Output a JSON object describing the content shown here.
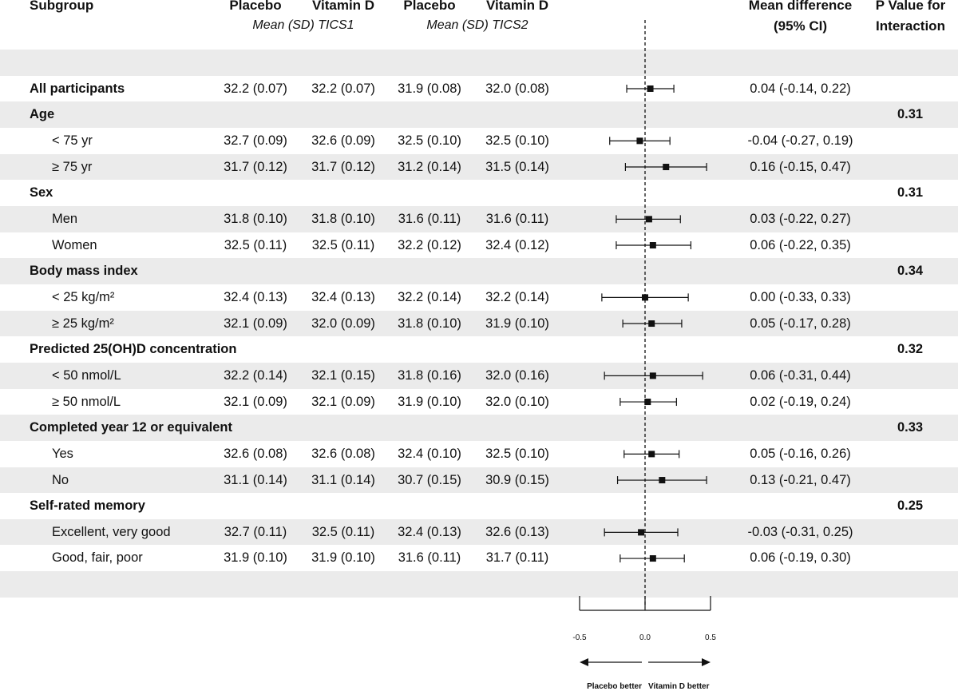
{
  "headers": {
    "subgroup": "Subgroup",
    "placebo1": "Placebo",
    "vitd1": "Vitamin D",
    "placebo2": "Placebo",
    "vitd2": "Vitamin D",
    "tics1": "Mean (SD) TICS1",
    "tics2": "Mean (SD) TICS2",
    "md_line1": "Mean difference",
    "md_line2": "(95% CI)",
    "pv_line1": "P Value for",
    "pv_line2": "Interaction"
  },
  "rows": [
    {
      "type": "blank"
    },
    {
      "type": "data",
      "bold": true,
      "label": "All participants",
      "p1": "32.2 (0.07)",
      "v1": "32.2 (0.07)",
      "p2": "31.9 (0.08)",
      "v2": "32.0 (0.08)",
      "md": "0.04 (-0.14, 0.22)"
    },
    {
      "type": "head",
      "label": "Age",
      "pval": "0.31"
    },
    {
      "type": "data",
      "label": "< 75 yr",
      "p1": "32.7 (0.09)",
      "v1": "32.6 (0.09)",
      "p2": "32.5 (0.10)",
      "v2": "32.5 (0.10)",
      "md": "-0.04 (-0.27, 0.19)"
    },
    {
      "type": "data",
      "label": "≥ 75 yr",
      "p1": "31.7 (0.12)",
      "v1": "31.7 (0.12)",
      "p2": "31.2 (0.14)",
      "v2": "31.5 (0.14)",
      "md": "0.16 (-0.15, 0.47)"
    },
    {
      "type": "head",
      "label": "Sex",
      "pval": "0.31"
    },
    {
      "type": "data",
      "label": "Men",
      "p1": "31.8 (0.10)",
      "v1": "31.8 (0.10)",
      "p2": "31.6 (0.11)",
      "v2": "31.6 (0.11)",
      "md": "0.03 (-0.22, 0.27)"
    },
    {
      "type": "data",
      "label": "Women",
      "p1": "32.5 (0.11)",
      "v1": "32.5 (0.11)",
      "p2": "32.2 (0.12)",
      "v2": "32.4 (0.12)",
      "md": "0.06 (-0.22, 0.35)"
    },
    {
      "type": "head",
      "label": "Body mass index",
      "pval": "0.34"
    },
    {
      "type": "data",
      "label": "< 25 kg/m²",
      "p1": "32.4 (0.13)",
      "v1": "32.4 (0.13)",
      "p2": "32.2 (0.14)",
      "v2": "32.2 (0.14)",
      "md": "0.00 (-0.33, 0.33)"
    },
    {
      "type": "data",
      "label": "≥ 25 kg/m²",
      "p1": "32.1 (0.09)",
      "v1": "32.0 (0.09)",
      "p2": "31.8 (0.10)",
      "v2": "31.9 (0.10)",
      "md": "0.05 (-0.17, 0.28)"
    },
    {
      "type": "head",
      "label": "Predicted 25(OH)D concentration",
      "pval": "0.32"
    },
    {
      "type": "data",
      "label": "< 50 nmol/L",
      "p1": "32.2 (0.14)",
      "v1": "32.1 (0.15)",
      "p2": "31.8 (0.16)",
      "v2": "32.0 (0.16)",
      "md": "0.06 (-0.31, 0.44)"
    },
    {
      "type": "data",
      "label": "≥ 50 nmol/L",
      "p1": "32.1 (0.09)",
      "v1": "32.1 (0.09)",
      "p2": "31.9 (0.10)",
      "v2": "32.0 (0.10)",
      "md": "0.02 (-0.19, 0.24)"
    },
    {
      "type": "head",
      "label": "Completed year 12 or equivalent",
      "pval": "0.33"
    },
    {
      "type": "data",
      "label": "Yes",
      "p1": "32.6 (0.08)",
      "v1": "32.6 (0.08)",
      "p2": "32.4 (0.10)",
      "v2": "32.5 (0.10)",
      "md": "0.05 (-0.16, 0.26)"
    },
    {
      "type": "data",
      "label": "No",
      "p1": "31.1 (0.14)",
      "v1": "31.1 (0.14)",
      "p2": "30.7 (0.15)",
      "v2": "30.9 (0.15)",
      "md": "0.13 (-0.21, 0.47)"
    },
    {
      "type": "head",
      "label": "Self-rated memory",
      "pval": "0.25"
    },
    {
      "type": "data",
      "label": "Excellent, very good",
      "p1": "32.7 (0.11)",
      "v1": "32.5 (0.11)",
      "p2": "32.4 (0.13)",
      "v2": "32.6 (0.13)",
      "md": "-0.03 (-0.31, 0.25)"
    },
    {
      "type": "data",
      "label": "Good, fair, poor",
      "p1": "31.9 (0.10)",
      "v1": "31.9 (0.10)",
      "p2": "31.6 (0.11)",
      "v2": "31.7 (0.11)",
      "md": "0.06 (-0.19, 0.30)"
    },
    {
      "type": "blank"
    }
  ],
  "chart_data": {
    "type": "forest",
    "xlim": [
      -0.5,
      0.5
    ],
    "reference_line": 0.0,
    "ticks": [
      "-0.5",
      "0.0",
      "0.5"
    ],
    "tick_values": [
      -0.5,
      0.0,
      0.5
    ],
    "left_label": "Placebo better",
    "right_label": "Vitamin D better",
    "estimates": [
      {
        "label": "All participants",
        "est": 0.04,
        "lo": -0.14,
        "hi": 0.22
      },
      {
        "label": "< 75 yr",
        "est": -0.04,
        "lo": -0.27,
        "hi": 0.19
      },
      {
        "label": "≥ 75 yr",
        "est": 0.16,
        "lo": -0.15,
        "hi": 0.47
      },
      {
        "label": "Men",
        "est": 0.03,
        "lo": -0.22,
        "hi": 0.27
      },
      {
        "label": "Women",
        "est": 0.06,
        "lo": -0.22,
        "hi": 0.35
      },
      {
        "label": "< 25 kg/m²",
        "est": 0.0,
        "lo": -0.33,
        "hi": 0.33
      },
      {
        "label": "≥ 25 kg/m²",
        "est": 0.05,
        "lo": -0.17,
        "hi": 0.28
      },
      {
        "label": "< 50 nmol/L",
        "est": 0.06,
        "lo": -0.31,
        "hi": 0.44
      },
      {
        "label": "≥ 50 nmol/L",
        "est": 0.02,
        "lo": -0.19,
        "hi": 0.24
      },
      {
        "label": "Yes",
        "est": 0.05,
        "lo": -0.16,
        "hi": 0.26
      },
      {
        "label": "No",
        "est": 0.13,
        "lo": -0.21,
        "hi": 0.47
      },
      {
        "label": "Excellent, very good",
        "est": -0.03,
        "lo": -0.31,
        "hi": 0.25
      },
      {
        "label": "Good, fair, poor",
        "est": 0.06,
        "lo": -0.19,
        "hi": 0.3
      }
    ]
  }
}
